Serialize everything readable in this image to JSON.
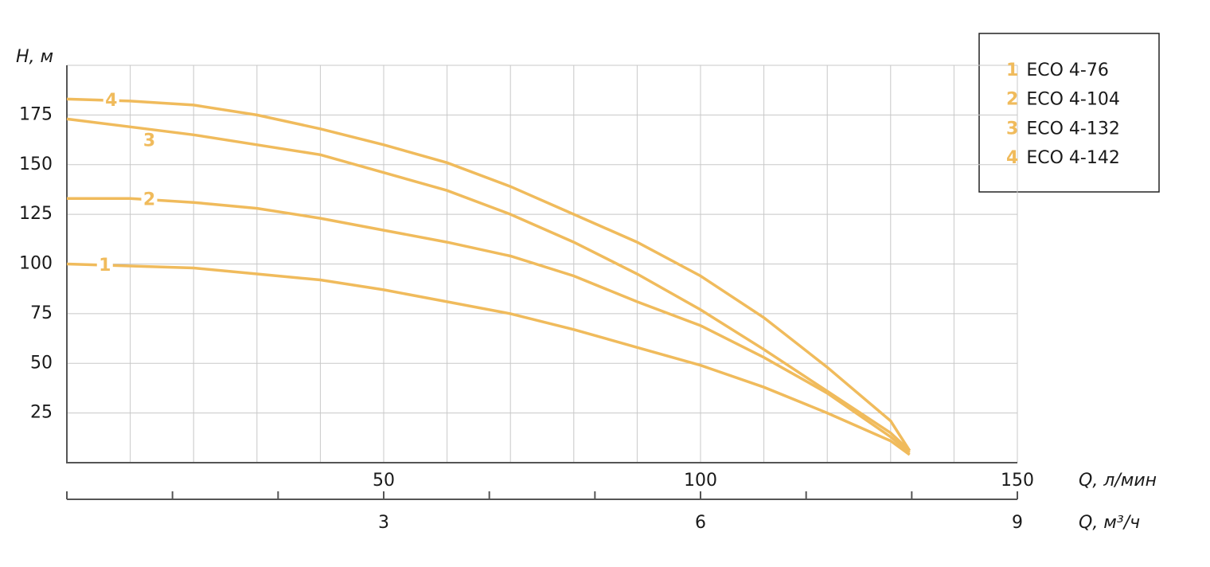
{
  "chart_data": {
    "type": "line",
    "y_label": "H, м",
    "x_label": "Q, л/мин",
    "x2_label": "Q, м³/ч",
    "xlim": [
      0,
      150
    ],
    "xticks": [
      50,
      100,
      150
    ],
    "xgrid": [
      10,
      20,
      30,
      40,
      50,
      60,
      70,
      80,
      90,
      100,
      110,
      120,
      130,
      140
    ],
    "x2lim": [
      0,
      9
    ],
    "x2ticks": [
      3,
      6,
      9
    ],
    "x2_minor": [
      0,
      1,
      2,
      3,
      4,
      5,
      6,
      7,
      8,
      9
    ],
    "ylim": [
      0,
      200
    ],
    "yticks": [
      25,
      50,
      75,
      100,
      125,
      150,
      175
    ],
    "grid": true,
    "x": [
      0,
      10,
      20,
      30,
      40,
      50,
      60,
      70,
      80,
      90,
      100,
      110,
      120,
      130,
      133
    ],
    "series": [
      {
        "label": "1",
        "name": "ECO 4-76",
        "color": "#f0bb5c",
        "values": [
          100,
          99,
          98,
          95,
          92,
          87,
          81,
          75,
          67,
          58,
          49,
          38,
          25,
          11,
          4
        ]
      },
      {
        "label": "2",
        "name": "ECO 4-104",
        "color": "#f0bb5c",
        "values": [
          133,
          133,
          131,
          128,
          123,
          117,
          111,
          104,
          94,
          81,
          69,
          53,
          35,
          13,
          5
        ]
      },
      {
        "label": "3",
        "name": "ECO 4-132",
        "color": "#f0bb5c",
        "values": [
          173,
          169,
          165,
          160,
          155,
          146,
          137,
          125,
          111,
          95,
          77,
          57,
          36,
          15,
          6
        ]
      },
      {
        "label": "4",
        "name": "ECO 4-142",
        "color": "#f0bb5c",
        "values": [
          183,
          182,
          180,
          175,
          168,
          160,
          151,
          139,
          125,
          111,
          94,
          73,
          48,
          21,
          6
        ]
      }
    ],
    "legend": "top-right"
  }
}
